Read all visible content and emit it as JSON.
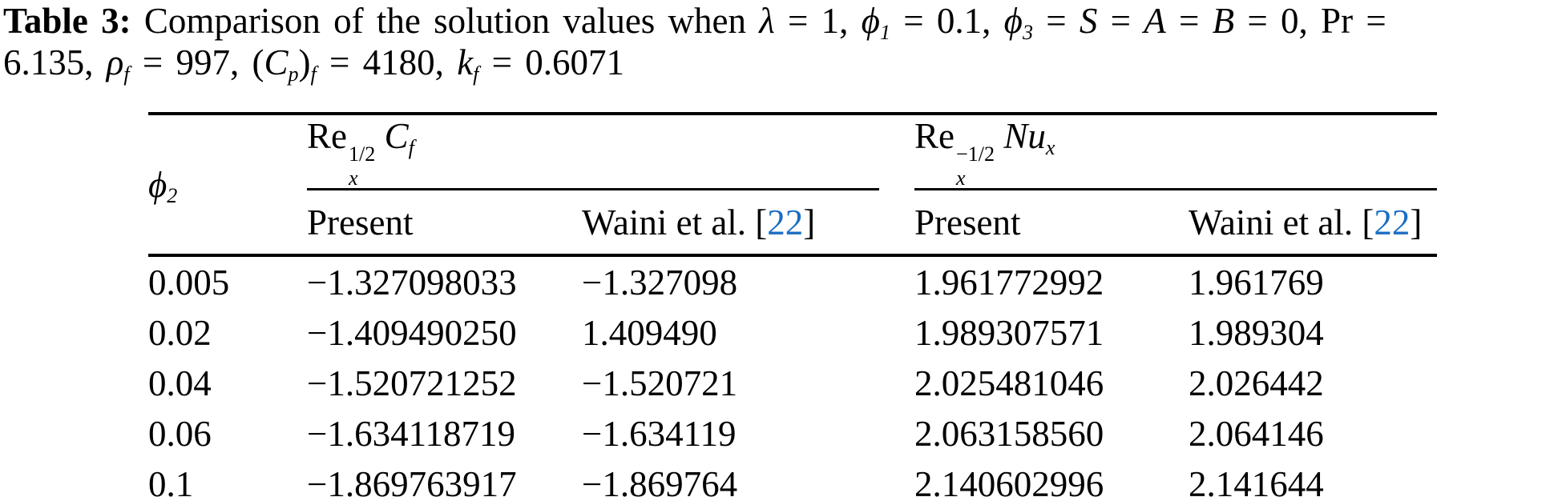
{
  "colors": {
    "citation_link": "#1c6dc2",
    "text": "#000000",
    "rule": "#000000"
  },
  "caption": {
    "segments": [
      {
        "style": "bold",
        "text": "Table 3: "
      },
      {
        "style": "plain",
        "text": "Comparison of the solution values when "
      },
      {
        "style": "math",
        "text": "λ"
      },
      {
        "style": "plain",
        "text": " = 1, "
      },
      {
        "style": "math",
        "text": "ϕ",
        "sub": "1"
      },
      {
        "style": "plain",
        "text": " = 0.1, "
      },
      {
        "style": "math",
        "text": "ϕ",
        "sub": "3"
      },
      {
        "style": "plain",
        "text": " = "
      },
      {
        "style": "math",
        "text": "S"
      },
      {
        "style": "plain",
        "text": " = "
      },
      {
        "style": "math",
        "text": "A"
      },
      {
        "style": "plain",
        "text": " = "
      },
      {
        "style": "math",
        "text": "B"
      },
      {
        "style": "plain",
        "text": " = 0, Pr ="
      },
      {
        "br": true
      },
      {
        "style": "plain",
        "text": "6.135, "
      },
      {
        "style": "math",
        "text": "ρ",
        "sub": "f",
        "subStyle": "math"
      },
      {
        "style": "plain",
        "text": " = 997, ("
      },
      {
        "style": "math",
        "text": "C",
        "sub": "p",
        "subStyle": "math"
      },
      {
        "style": "plain",
        "text": ")",
        "sub": "f",
        "subStyle": "math"
      },
      {
        "style": "plain",
        "text": " = 4180, "
      },
      {
        "style": "math",
        "text": "k",
        "sub": "f",
        "subStyle": "math"
      },
      {
        "style": "plain",
        "text": " = 0.6071"
      }
    ]
  },
  "table": {
    "phi2_header": {
      "segments": [
        {
          "style": "math",
          "text": "ϕ",
          "sub": "2"
        }
      ]
    },
    "cf_group_header": {
      "segments": [
        {
          "style": "plain",
          "text": "Re",
          "sup": "1/2",
          "sub": "x"
        },
        {
          "style": "plain",
          "text": " "
        },
        {
          "style": "math",
          "text": "C",
          "sub": "f",
          "subStyle": "math"
        }
      ]
    },
    "nu_group_header": {
      "segments": [
        {
          "style": "plain",
          "text": "Re",
          "sup": "−1/2",
          "sub": "x"
        },
        {
          "style": "plain",
          "text": " "
        },
        {
          "style": "math",
          "text": "Nu",
          "sub": "x",
          "subStyle": "math"
        }
      ]
    },
    "present_label": "Present",
    "waini_header": {
      "segments": [
        {
          "style": "plain",
          "text": "Waini et al. ["
        },
        {
          "style": "link",
          "text": "22"
        },
        {
          "style": "plain",
          "text": "]"
        }
      ]
    },
    "rows": [
      {
        "phi2": "0.005",
        "cf_present": "−1.327098033",
        "cf_waini": "−1.327098",
        "nu_present": "1.961772992",
        "nu_waini": "1.961769"
      },
      {
        "phi2": "0.02",
        "cf_present": "−1.409490250",
        "cf_waini": "1.409490",
        "nu_present": "1.989307571",
        "nu_waini": "1.989304"
      },
      {
        "phi2": "0.04",
        "cf_present": "−1.520721252",
        "cf_waini": "−1.520721",
        "nu_present": "2.025481046",
        "nu_waini": "2.026442"
      },
      {
        "phi2": "0.06",
        "cf_present": "−1.634118719",
        "cf_waini": "−1.634119",
        "nu_present": "2.063158560",
        "nu_waini": "2.064146"
      },
      {
        "phi2": "0.1",
        "cf_present": "−1.869763917",
        "cf_waini": "−1.869764",
        "nu_present": "2.140602996",
        "nu_waini": "2.141644"
      }
    ]
  }
}
